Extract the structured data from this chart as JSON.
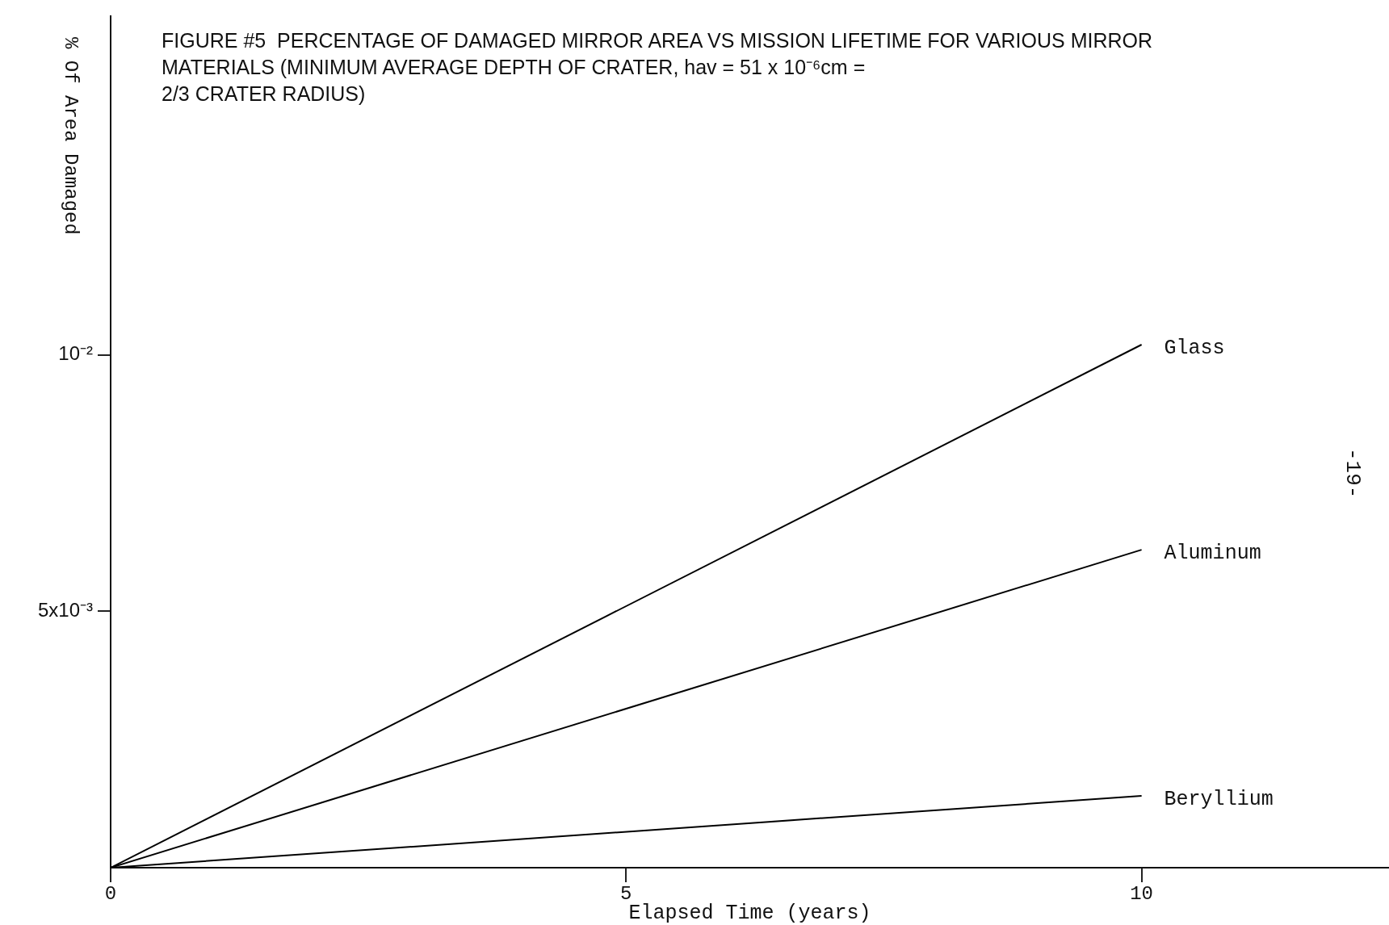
{
  "chart_data": {
    "type": "line",
    "title": "FIGURE #5  PERCENTAGE OF DAMAGED MIRROR AREA VS MISSION LIFETIME FOR VARIOUS MIRROR\nMATERIALS (MINIMUM AVERAGE DEPTH OF CRATER, hav = 51 x 10⁻⁶cm =\n2/3 CRATER RADIUS)",
    "xlabel": "Elapsed Time (years)",
    "ylabel": "% Of Area Damaged",
    "x": [
      0,
      10
    ],
    "series": [
      {
        "name": "Glass",
        "color": "#000000",
        "values": [
          0,
          0.0102
        ]
      },
      {
        "name": "Aluminum",
        "color": "#000000",
        "values": [
          0,
          0.0062
        ]
      },
      {
        "name": "Beryllium",
        "color": "#000000",
        "values": [
          0,
          0.0014
        ]
      }
    ],
    "xlim": [
      0,
      12.4
    ],
    "ylim": [
      0,
      0.0166
    ],
    "xticks": [
      0,
      5,
      10
    ],
    "yticks": [
      {
        "value": 0.005,
        "label": "5x10⁻³"
      },
      {
        "value": 0.01,
        "label": "10⁻²"
      }
    ],
    "grid": false,
    "legend": false,
    "marker": "none",
    "line_style": "solid",
    "annotations": [
      "-19-"
    ]
  }
}
